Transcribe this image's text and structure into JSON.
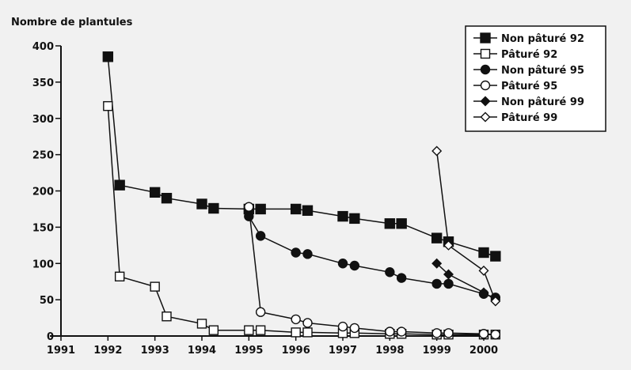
{
  "chart_data": {
    "type": "line",
    "title": "",
    "ylabel": "Nombre de plantules",
    "xlabel": "",
    "xlim": [
      1991,
      2000
    ],
    "ylim": [
      0,
      400
    ],
    "x_ticks": [
      1991,
      1992,
      1993,
      1994,
      1995,
      1996,
      1997,
      1998,
      1999,
      2000
    ],
    "y_ticks": [
      0,
      50,
      100,
      150,
      200,
      250,
      300,
      350,
      400
    ],
    "grid": false,
    "legend_position": "top-right",
    "series": [
      {
        "name": "Non pâturé 92",
        "marker": "filled-square",
        "points": [
          [
            1992.0,
            385
          ],
          [
            1992.25,
            208
          ],
          [
            1993.0,
            198
          ],
          [
            1993.25,
            190
          ],
          [
            1994.0,
            182
          ],
          [
            1994.25,
            176
          ],
          [
            1995.0,
            175
          ],
          [
            1995.25,
            175
          ],
          [
            1996.0,
            175
          ],
          [
            1996.25,
            173
          ],
          [
            1997.0,
            165
          ],
          [
            1997.25,
            162
          ],
          [
            1998.0,
            155
          ],
          [
            1998.25,
            155
          ],
          [
            1999.0,
            135
          ],
          [
            1999.25,
            130
          ],
          [
            2000.0,
            115
          ],
          [
            2000.25,
            110
          ]
        ]
      },
      {
        "name": "Pâturé 92",
        "marker": "open-square",
        "points": [
          [
            1992.0,
            317
          ],
          [
            1992.25,
            82
          ],
          [
            1993.0,
            68
          ],
          [
            1993.25,
            27
          ],
          [
            1994.0,
            17
          ],
          [
            1994.25,
            8
          ],
          [
            1995.0,
            8
          ],
          [
            1995.25,
            8
          ],
          [
            1996.0,
            5
          ],
          [
            1996.25,
            5
          ],
          [
            1997.0,
            4
          ],
          [
            1997.25,
            4
          ],
          [
            1998.0,
            3
          ],
          [
            1998.25,
            3
          ],
          [
            1999.0,
            2
          ],
          [
            1999.25,
            2
          ],
          [
            2000.0,
            2
          ],
          [
            2000.25,
            2
          ]
        ]
      },
      {
        "name": "Non pâturé 95",
        "marker": "filled-circle",
        "points": [
          [
            1995.0,
            165
          ],
          [
            1995.25,
            138
          ],
          [
            1996.0,
            115
          ],
          [
            1996.25,
            113
          ],
          [
            1997.0,
            100
          ],
          [
            1997.25,
            97
          ],
          [
            1998.0,
            88
          ],
          [
            1998.25,
            80
          ],
          [
            1999.0,
            72
          ],
          [
            1999.25,
            72
          ],
          [
            2000.0,
            58
          ],
          [
            2000.25,
            53
          ]
        ]
      },
      {
        "name": "Pâturé 95",
        "marker": "open-circle",
        "points": [
          [
            1995.0,
            178
          ],
          [
            1995.25,
            33
          ],
          [
            1996.0,
            23
          ],
          [
            1996.25,
            18
          ],
          [
            1997.0,
            13
          ],
          [
            1997.25,
            11
          ],
          [
            1998.0,
            6
          ],
          [
            1998.25,
            6
          ],
          [
            1999.0,
            4
          ],
          [
            1999.25,
            4
          ],
          [
            2000.0,
            3
          ],
          [
            2000.25,
            2
          ]
        ]
      },
      {
        "name": "Non pâturé 99",
        "marker": "filled-diamond",
        "points": [
          [
            1999.0,
            100
          ],
          [
            1999.25,
            85
          ],
          [
            2000.0,
            60
          ],
          [
            2000.25,
            50
          ]
        ]
      },
      {
        "name": "Pâturé 99",
        "marker": "open-diamond",
        "points": [
          [
            1999.0,
            255
          ],
          [
            1999.25,
            125
          ],
          [
            2000.0,
            90
          ],
          [
            2000.25,
            48
          ]
        ]
      }
    ]
  },
  "colors": {
    "background": "#f1f1f1",
    "ink": "#111111",
    "marker_fill_open": "#ffffff"
  }
}
